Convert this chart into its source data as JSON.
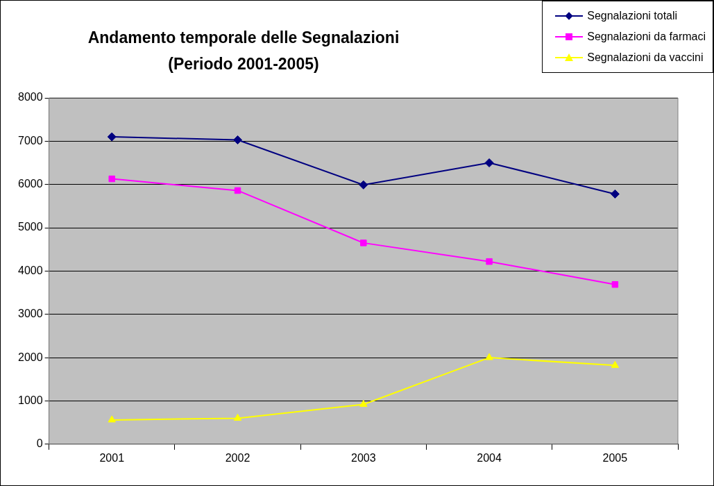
{
  "chart_data": {
    "type": "line",
    "title": "Andamento temporale delle Segnalazioni\n(Periodo 2001-2005)",
    "categories": [
      "2001",
      "2002",
      "2003",
      "2004",
      "2005"
    ],
    "series": [
      {
        "name": "Segnalazioni totali",
        "color": "#000080",
        "marker": "diamond",
        "values": [
          7100,
          7030,
          5990,
          6500,
          5780
        ]
      },
      {
        "name": "Segnalazioni da farmaci",
        "color": "#ff00ff",
        "marker": "square",
        "values": [
          6130,
          5860,
          4650,
          4220,
          3690
        ]
      },
      {
        "name": "Segnalazioni da vaccini",
        "color": "#ffff00",
        "marker": "triangle",
        "values": [
          560,
          600,
          920,
          2000,
          1820
        ]
      }
    ],
    "ylim": [
      0,
      8000
    ],
    "yticks": [
      0,
      1000,
      2000,
      3000,
      4000,
      5000,
      6000,
      7000,
      8000
    ],
    "grid": "y",
    "legend": "top right",
    "line_style": "solid"
  }
}
